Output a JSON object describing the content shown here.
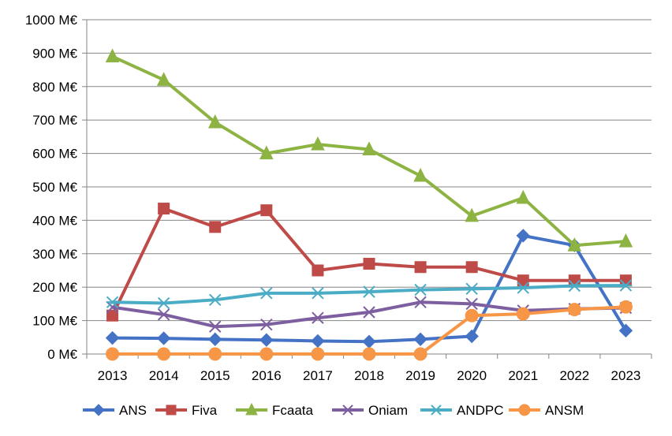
{
  "chart_data": {
    "type": "line",
    "x": [
      "2013",
      "2014",
      "2015",
      "2016",
      "2017",
      "2018",
      "2019",
      "2020",
      "2021",
      "2022",
      "2023"
    ],
    "ylim": [
      0,
      1000
    ],
    "yticks": [
      0,
      100,
      200,
      300,
      400,
      500,
      600,
      700,
      800,
      900,
      1000
    ],
    "ytick_labels": [
      "0 M€",
      "100 M€",
      "200 M€",
      "300 M€",
      "400 M€",
      "500 M€",
      "600 M€",
      "700 M€",
      "800 M€",
      "900 M€",
      "1000 M€"
    ],
    "grid": "horizontal",
    "legend_position": "bottom",
    "series": [
      {
        "name": "ANS",
        "color": "#4472C4",
        "marker": "diamond",
        "values": [
          48,
          47,
          44,
          42,
          39,
          37,
          44,
          53,
          354,
          325,
          70
        ]
      },
      {
        "name": "Fiva",
        "color": "#BE4B48",
        "marker": "square",
        "values": [
          115,
          435,
          380,
          430,
          250,
          270,
          260,
          260,
          220,
          220,
          220
        ]
      },
      {
        "name": "Fcaata",
        "color": "#8DB443",
        "marker": "triangle",
        "values": [
          890,
          820,
          693,
          600,
          627,
          612,
          533,
          413,
          467,
          325,
          337
        ]
      },
      {
        "name": "Oniam",
        "color": "#7D5FA0",
        "marker": "x",
        "values": [
          140,
          118,
          82,
          88,
          108,
          125,
          155,
          150,
          130,
          135,
          138
        ]
      },
      {
        "name": "ANDPC",
        "color": "#4BACC6",
        "marker": "asterisk",
        "values": [
          155,
          152,
          162,
          182,
          182,
          186,
          192,
          195,
          198,
          204,
          205
        ]
      },
      {
        "name": "ANSM",
        "color": "#F79646",
        "marker": "circle",
        "values": [
          0,
          0,
          0,
          0,
          0,
          0,
          0,
          115,
          120,
          133,
          141
        ]
      }
    ]
  }
}
